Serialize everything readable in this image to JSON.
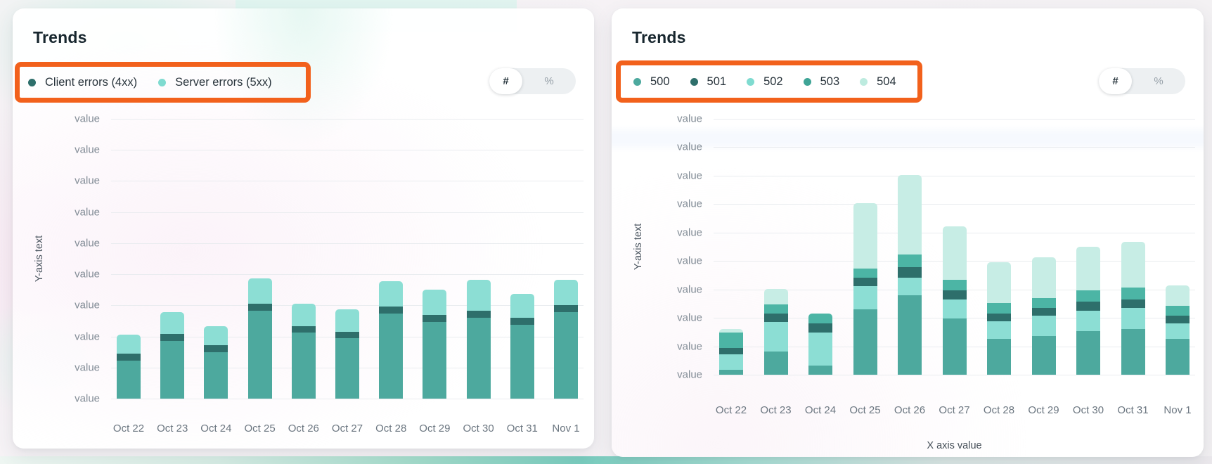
{
  "cards": [
    {
      "title": "Trends",
      "annotation": {
        "color": "#F2611C"
      },
      "legend": [
        {
          "label": "Client errors (4xx)",
          "color": "#2E6F6B"
        },
        {
          "label": "Server errors (5xx)",
          "color": "#7FDBD0"
        }
      ],
      "toggle": {
        "count_label": "#",
        "percent_label": "%",
        "selected": "#"
      },
      "y_axis": {
        "title": "Y-axis text",
        "tick_label": "value",
        "tick_count": 10
      },
      "x_axis_title": ""
    },
    {
      "title": "Trends",
      "annotation": {
        "color": "#F2611C"
      },
      "legend": [
        {
          "label": "500",
          "color": "#4DA99E"
        },
        {
          "label": "501",
          "color": "#2E6F6B"
        },
        {
          "label": "502",
          "color": "#7FDBD0"
        },
        {
          "label": "503",
          "color": "#3FA496"
        },
        {
          "label": "504",
          "color": "#BDEBDF"
        }
      ],
      "toggle": {
        "count_label": "#",
        "percent_label": "%",
        "selected": "#"
      },
      "y_axis": {
        "title": "Y-axis text",
        "tick_label": "value",
        "tick_count": 10
      },
      "x_axis_title": "X axis value"
    }
  ],
  "chart_data": [
    {
      "type": "bar",
      "stacked": true,
      "title": "Trends",
      "xlabel": "",
      "ylabel": "Y-axis text",
      "grid": true,
      "legend_position": "top-left",
      "ylim_note": "y ticks are placeholder text 'value'; values below are % of plot height (100 = top gridline)",
      "categories": [
        "Oct 22",
        "Oct 23",
        "Oct 24",
        "Oct 25",
        "Oct 26",
        "Oct 27",
        "Oct 28",
        "Oct 29",
        "Oct 30",
        "Oct 31",
        "Nov 1"
      ],
      "series": [
        {
          "name": "Client errors (4xx)",
          "color": "#4DA99E",
          "cap_color": "#2E6F6B",
          "cap_units": 2.5,
          "values": [
            16,
            23,
            19,
            34,
            26,
            24,
            33,
            30,
            31.5,
            29,
            33.5
          ]
        },
        {
          "name": "Server errors (5xx)",
          "color": "#8CDED4",
          "values": [
            7,
            8,
            7,
            9,
            8,
            8,
            9,
            9,
            11,
            8.5,
            9
          ]
        }
      ]
    },
    {
      "type": "bar",
      "stacked": true,
      "title": "Trends",
      "xlabel": "X axis value",
      "ylabel": "Y-axis text",
      "grid": true,
      "legend_position": "top-left",
      "ylim_note": "y ticks are placeholder text 'value'; values below are % of plot height (100 = top gridline)",
      "categories": [
        "Oct 22",
        "Oct 23",
        "Oct 24",
        "Oct 25",
        "Oct 26",
        "Oct 27",
        "Oct 28",
        "Oct 29",
        "Oct 30",
        "Oct 31",
        "Nov 1"
      ],
      "stack_order": [
        "500",
        "502",
        "501",
        "503",
        "504"
      ],
      "series": [
        {
          "name": "500",
          "color": "#4DA99E",
          "values": [
            2,
            9,
            3.5,
            25.5,
            31,
            22,
            14,
            15,
            17,
            18,
            14
          ]
        },
        {
          "name": "501",
          "color": "#2E6F6B",
          "values": [
            2.5,
            3.5,
            3.5,
            3.5,
            4,
            3.5,
            3,
            3,
            3.5,
            3.5,
            3
          ]
        },
        {
          "name": "502",
          "color": "#8CDED4",
          "values": [
            6,
            11.5,
            13,
            9,
            7,
            7.5,
            7,
            8,
            8,
            8,
            6
          ]
        },
        {
          "name": "503",
          "color": "#4CB5A5",
          "values": [
            6,
            3.5,
            4,
            3.5,
            5,
            4,
            4,
            4,
            4.5,
            4.5,
            4
          ]
        },
        {
          "name": "504",
          "color": "#C7EDE5",
          "values": [
            1.5,
            6,
            0,
            25.5,
            31,
            21,
            16,
            16,
            17,
            18,
            8
          ]
        }
      ]
    }
  ]
}
